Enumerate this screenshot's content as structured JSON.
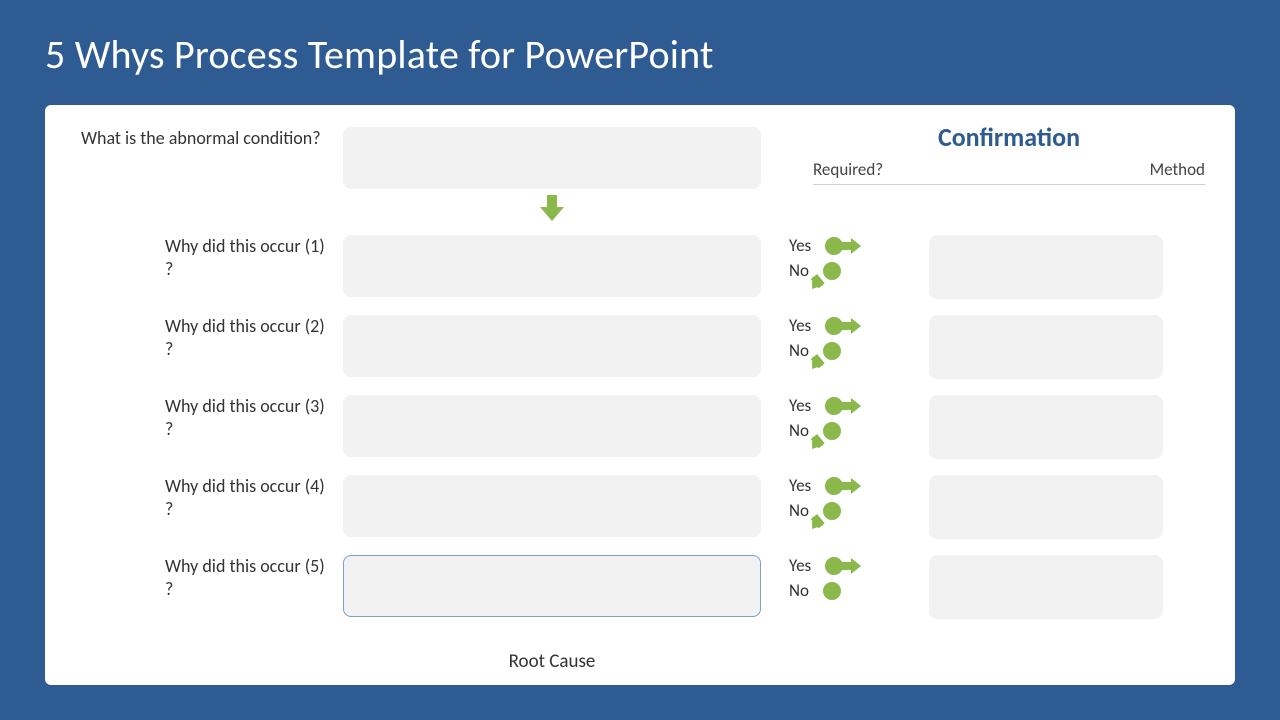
{
  "colors": {
    "slide_bg": "#2f5b93",
    "card_bg": "#ffffff",
    "text_dark": "#333333",
    "accent_green": "#8ab84a",
    "outline_blue": "#7ba2ca",
    "field_bg": "#f2f2f2",
    "divider": "#cfcfcf"
  },
  "slide": {
    "title": "5 Whys Process Template for PowerPoint"
  },
  "confirmation": {
    "heading": "Confirmation",
    "required_label": "Required?",
    "method_label": "Method",
    "yes_label": "Yes",
    "no_label": "No"
  },
  "questions": {
    "abnormal": "What is the abnormal condition?",
    "whys": [
      {
        "label": "Why did this occur (1) ?",
        "outlined": false,
        "has_no_arrow": true
      },
      {
        "label": "Why did this occur (2) ?",
        "outlined": false,
        "has_no_arrow": true
      },
      {
        "label": "Why did this occur (3) ?",
        "outlined": false,
        "has_no_arrow": true
      },
      {
        "label": "Why did this occur (4) ?",
        "outlined": false,
        "has_no_arrow": true
      },
      {
        "label": "Why did this occur (5) ?",
        "outlined": true,
        "has_no_arrow": false
      }
    ],
    "root_cause_label": "Root Cause"
  }
}
